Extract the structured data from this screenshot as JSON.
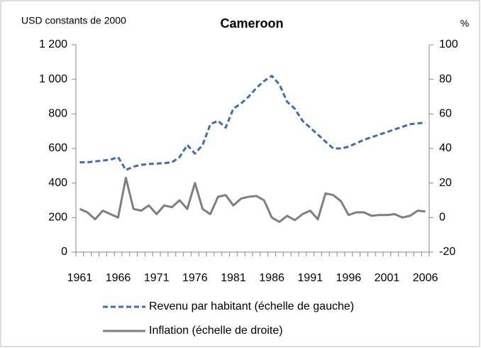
{
  "chart_data": {
    "type": "line",
    "title": "Cameroon",
    "y_label": "USD constants de 2000",
    "y2_label": "%",
    "categories": [
      "1961",
      null,
      null,
      null,
      null,
      "1966",
      null,
      null,
      null,
      null,
      "1971",
      null,
      null,
      null,
      null,
      "1976",
      null,
      null,
      null,
      null,
      "1981",
      null,
      null,
      null,
      null,
      "1986",
      null,
      null,
      null,
      null,
      "1991",
      null,
      null,
      null,
      null,
      "1996",
      null,
      null,
      null,
      null,
      "2001",
      null,
      null,
      null,
      null,
      "2006"
    ],
    "series": [
      {
        "name": "Revenu par habitant (échelle de gauche)",
        "color": "#3f6cb3",
        "dash": "dashed",
        "values": [
          520,
          520,
          525,
          530,
          535,
          550,
          475,
          495,
          505,
          510,
          512,
          515,
          520,
          550,
          620,
          570,
          620,
          740,
          760,
          720,
          830,
          860,
          900,
          950,
          990,
          1020,
          970,
          870,
          830,
          760,
          720,
          680,
          640,
          600,
          600,
          610,
          630,
          650,
          665,
          680,
          695,
          710,
          725,
          740,
          745,
          750
        ]
      },
      {
        "name": "Inflation (échelle de droite)",
        "color": "#7f7f7f",
        "dash": "solid",
        "axis": "y2",
        "values": [
          5,
          3,
          -1,
          4,
          2,
          0,
          23,
          5,
          4,
          7,
          2,
          7,
          6,
          10,
          5,
          20,
          5,
          2,
          12,
          13,
          7,
          11,
          12,
          12.5,
          10,
          0,
          -2.5,
          1,
          -1.5,
          2,
          4,
          -1,
          14,
          13,
          9.5,
          1.5,
          3,
          3,
          1,
          1.5,
          1.5,
          2,
          0,
          1,
          4,
          3.5
        ]
      }
    ],
    "ylim": [
      0,
      1200
    ],
    "yticks": [
      0,
      200,
      400,
      600,
      800,
      {
        "value": 1000,
        "label": "1 000"
      },
      {
        "value": 1200,
        "label": "1 200"
      }
    ],
    "y2lim": [
      -20,
      100
    ],
    "y2ticks": [
      -20,
      0,
      20,
      40,
      60,
      80,
      100
    ],
    "grid": false,
    "legend": "bottom"
  }
}
